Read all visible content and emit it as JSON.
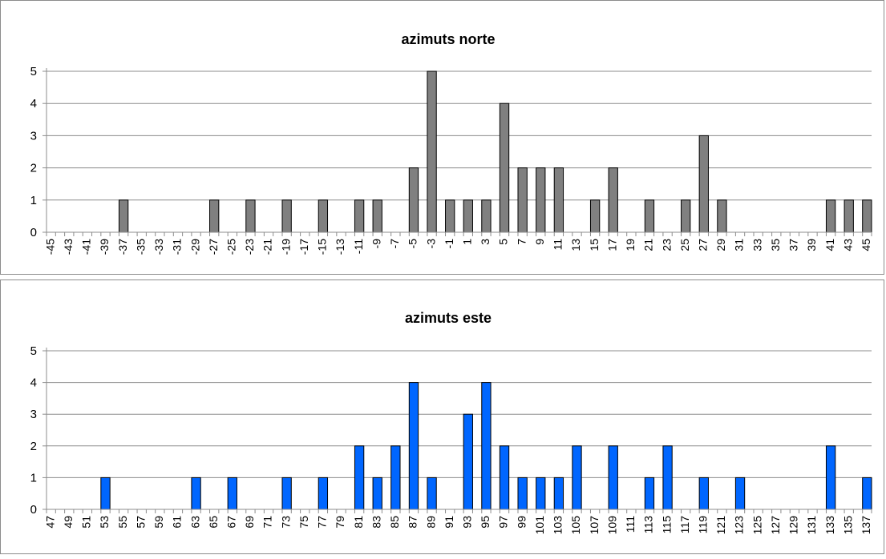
{
  "chart_data": [
    {
      "type": "bar",
      "title": "azimuts norte",
      "xlabel": "",
      "ylabel": "",
      "ylim": [
        0,
        5
      ],
      "yticks": [
        "0",
        "1",
        "2",
        "3",
        "4",
        "5"
      ],
      "grid": true,
      "legend": "none",
      "bar_color": "#808080",
      "x": [
        -45,
        -44,
        -43,
        -42,
        -41,
        -40,
        -39,
        -38,
        -37,
        -36,
        -35,
        -34,
        -33,
        -32,
        -31,
        -30,
        -29,
        -28,
        -27,
        -26,
        -25,
        -24,
        -23,
        -22,
        -21,
        -20,
        -19,
        -18,
        -17,
        -16,
        -15,
        -14,
        -13,
        -12,
        -11,
        -10,
        -9,
        -8,
        -7,
        -6,
        -5,
        -4,
        -3,
        -2,
        -1,
        0,
        1,
        2,
        3,
        4,
        5,
        6,
        7,
        8,
        9,
        10,
        11,
        12,
        13,
        14,
        15,
        16,
        17,
        18,
        19,
        20,
        21,
        22,
        23,
        24,
        25,
        26,
        27,
        28,
        29,
        30,
        31,
        32,
        33,
        34,
        35,
        36,
        37,
        38,
        39,
        40,
        41,
        42,
        43,
        44,
        45
      ],
      "categories": [
        "-45",
        "-43",
        "-41",
        "-39",
        "-37",
        "-35",
        "-33",
        "-31",
        "-29",
        "-27",
        "-25",
        "-23",
        "-21",
        "-19",
        "-17",
        "-15",
        "-13",
        "-11",
        "-9",
        "-7",
        "-5",
        "-3",
        "-1",
        "1",
        "3",
        "5",
        "7",
        "9",
        "11",
        "13",
        "15",
        "17",
        "19",
        "21",
        "23",
        "25",
        "27",
        "29",
        "31",
        "33",
        "35",
        "37",
        "39",
        "41",
        "43",
        "45"
      ],
      "values": [
        0,
        0,
        0,
        0,
        0,
        0,
        0,
        0,
        1,
        0,
        0,
        0,
        0,
        0,
        0,
        0,
        0,
        0,
        1,
        0,
        0,
        0,
        1,
        0,
        0,
        0,
        1,
        0,
        0,
        0,
        1,
        0,
        0,
        0,
        1,
        0,
        1,
        0,
        0,
        0,
        2,
        0,
        5,
        0,
        1,
        0,
        1,
        0,
        1,
        0,
        4,
        0,
        2,
        0,
        2,
        0,
        2,
        0,
        0,
        0,
        1,
        0,
        2,
        0,
        0,
        0,
        1,
        0,
        0,
        0,
        1,
        0,
        3,
        0,
        1,
        0,
        0,
        0,
        0,
        0,
        0,
        0,
        0,
        0,
        0,
        0,
        1,
        0,
        1,
        0,
        1
      ]
    },
    {
      "type": "bar",
      "title": "azimuts este",
      "xlabel": "",
      "ylabel": "",
      "ylim": [
        0,
        5
      ],
      "yticks": [
        "0",
        "1",
        "2",
        "3",
        "4",
        "5"
      ],
      "grid": true,
      "legend": "none",
      "bar_color": "#0066ff",
      "x": [
        47,
        48,
        49,
        50,
        51,
        52,
        53,
        54,
        55,
        56,
        57,
        58,
        59,
        60,
        61,
        62,
        63,
        64,
        65,
        66,
        67,
        68,
        69,
        70,
        71,
        72,
        73,
        74,
        75,
        76,
        77,
        78,
        79,
        80,
        81,
        82,
        83,
        84,
        85,
        86,
        87,
        88,
        89,
        90,
        91,
        92,
        93,
        94,
        95,
        96,
        97,
        98,
        99,
        100,
        101,
        102,
        103,
        104,
        105,
        106,
        107,
        108,
        109,
        110,
        111,
        112,
        113,
        114,
        115,
        116,
        117,
        118,
        119,
        120,
        121,
        122,
        123,
        124,
        125,
        126,
        127,
        128,
        129,
        130,
        131,
        132,
        133,
        134,
        135,
        136,
        137
      ],
      "categories": [
        "47",
        "49",
        "51",
        "53",
        "55",
        "57",
        "59",
        "61",
        "63",
        "65",
        "67",
        "69",
        "71",
        "73",
        "75",
        "77",
        "79",
        "81",
        "83",
        "85",
        "87",
        "89",
        "91",
        "93",
        "95",
        "97",
        "99",
        "101",
        "103",
        "105",
        "107",
        "109",
        "111",
        "113",
        "115",
        "117",
        "119",
        "121",
        "123",
        "125",
        "127",
        "129",
        "131",
        "133",
        "135",
        "137"
      ],
      "values": [
        0,
        0,
        0,
        0,
        0,
        0,
        1,
        0,
        0,
        0,
        0,
        0,
        0,
        0,
        0,
        0,
        1,
        0,
        0,
        0,
        1,
        0,
        0,
        0,
        0,
        0,
        1,
        0,
        0,
        0,
        1,
        0,
        0,
        0,
        2,
        0,
        1,
        0,
        2,
        0,
        4,
        0,
        1,
        0,
        0,
        0,
        3,
        0,
        4,
        0,
        2,
        0,
        1,
        0,
        1,
        0,
        1,
        0,
        2,
        0,
        0,
        0,
        2,
        0,
        0,
        0,
        1,
        0,
        2,
        0,
        0,
        0,
        1,
        0,
        0,
        0,
        1,
        0,
        0,
        0,
        0,
        0,
        0,
        0,
        0,
        0,
        2,
        0,
        0,
        0,
        1
      ]
    }
  ]
}
